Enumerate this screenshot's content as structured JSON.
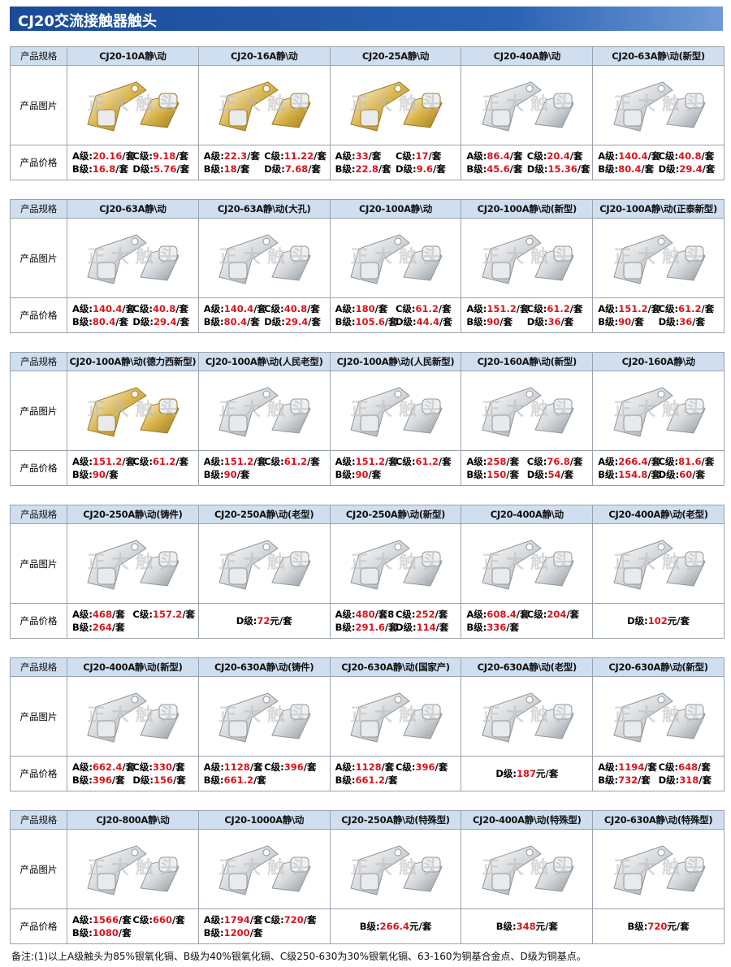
{
  "header": {
    "title": "CJ20交流接触器触头"
  },
  "row_labels": [
    "产品规格",
    "产品图片",
    "产品价格"
  ],
  "watermark": "正 大 触 头",
  "blocks": [
    {
      "columns": [
        {
          "name": "CJ20-10A静\\动",
          "prices": [
            [
              [
                "A级:",
                "20.16",
                "/套"
              ],
              [
                "C级:",
                "9.18",
                "/套"
              ]
            ],
            [
              [
                "B级:",
                "16.8",
                "/套"
              ],
              [
                "D级:",
                "5.76",
                "/套"
              ]
            ]
          ]
        },
        {
          "name": "CJ20-16A静\\动",
          "prices": [
            [
              [
                "A级:",
                "22.3",
                "/套"
              ],
              [
                "C级:",
                "11.22",
                "/套"
              ]
            ],
            [
              [
                "B级:",
                "18",
                "/套"
              ],
              [
                "D级:",
                "7.68",
                "/套"
              ]
            ]
          ]
        },
        {
          "name": "CJ20-25A静\\动",
          "prices": [
            [
              [
                "A级:",
                "33",
                "/套"
              ],
              [
                "C级:",
                "17",
                "/套"
              ]
            ],
            [
              [
                "B级:",
                "22.8",
                "/套"
              ],
              [
                "D级:",
                "9.6",
                "/套"
              ]
            ]
          ]
        },
        {
          "name": "CJ20-40A静\\动",
          "prices": [
            [
              [
                "A级:",
                "86.4",
                "/套"
              ],
              [
                "C级:",
                "20.4",
                "/套"
              ]
            ],
            [
              [
                "B级:",
                "45.6",
                "/套"
              ],
              [
                "D级:",
                "15.36",
                "/套"
              ]
            ]
          ]
        },
        {
          "name": "CJ20-63A静\\动(新型)",
          "prices": [
            [
              [
                "A级:",
                "140.4",
                "/套"
              ],
              [
                "C级:",
                "40.8",
                "/套"
              ]
            ],
            [
              [
                "B级:",
                "80.4",
                "/套"
              ],
              [
                "D级:",
                "29.4",
                "/套"
              ]
            ]
          ]
        }
      ]
    },
    {
      "columns": [
        {
          "name": "CJ20-63A静\\动",
          "prices": [
            [
              [
                "A级:",
                "140.4",
                "/套"
              ],
              [
                "C级:",
                "40.8",
                "/套"
              ]
            ],
            [
              [
                "B级:",
                "80.4",
                "/套"
              ],
              [
                "D级:",
                "29.4",
                "/套"
              ]
            ]
          ]
        },
        {
          "name": "CJ20-63A静\\动(大孔)",
          "prices": [
            [
              [
                "A级:",
                "140.4",
                "/套"
              ],
              [
                "C级:",
                "40.8",
                "/套"
              ]
            ],
            [
              [
                "B级:",
                "80.4",
                "/套"
              ],
              [
                "D级:",
                "29.4",
                "/套"
              ]
            ]
          ]
        },
        {
          "name": "CJ20-100A静\\动",
          "prices": [
            [
              [
                "A级:",
                "180",
                "/套"
              ],
              [
                "C级:",
                "61.2",
                "/套"
              ]
            ],
            [
              [
                "B级:",
                "105.6",
                "/套"
              ],
              [
                "D级:",
                "44.4",
                "/套"
              ]
            ]
          ]
        },
        {
          "name": "CJ20-100A静\\动(新型)",
          "prices": [
            [
              [
                "A级:",
                "151.2",
                "/套"
              ],
              [
                "C级:",
                "61.2",
                "/套"
              ]
            ],
            [
              [
                "B级:",
                "90",
                "/套"
              ],
              [
                "D级:",
                "36",
                "/套"
              ]
            ]
          ]
        },
        {
          "name": "CJ20-100A静\\动(正泰新型)",
          "prices": [
            [
              [
                "A级:",
                "151.2",
                "/套"
              ],
              [
                "C级:",
                "61.2",
                "/套"
              ]
            ],
            [
              [
                "B级:",
                "90",
                "/套"
              ],
              [
                "D级:",
                "36",
                "/套"
              ]
            ]
          ]
        }
      ]
    },
    {
      "columns": [
        {
          "name": "CJ20-100A静\\动(德力西新型)",
          "prices": [
            [
              [
                "A级:",
                "151.2",
                "/套"
              ],
              [
                "C级:",
                "61.2",
                "/套"
              ]
            ],
            [
              [
                "B级:",
                "90",
                "/套"
              ]
            ]
          ]
        },
        {
          "name": "CJ20-100A静\\动(人民老型)",
          "prices": [
            [
              [
                "A级:",
                "151.2",
                "/套"
              ],
              [
                "C级:",
                "61.2",
                "/套"
              ]
            ],
            [
              [
                "B级:",
                "90",
                "/套"
              ]
            ]
          ]
        },
        {
          "name": "CJ20-100A静\\动(人民新型)",
          "prices": [
            [
              [
                "A级:",
                "151.2",
                "/套"
              ],
              [
                "C级:",
                "61.2",
                "/套"
              ]
            ],
            [
              [
                "B级:",
                "90",
                "/套"
              ]
            ]
          ]
        },
        {
          "name": "CJ20-160A静\\动(新型)",
          "prices": [
            [
              [
                "A级:",
                "258",
                "/套"
              ],
              [
                "C级:",
                "76.8",
                "/套"
              ]
            ],
            [
              [
                "B级:",
                "150",
                "/套"
              ],
              [
                "D级:",
                "54",
                "/套"
              ]
            ]
          ]
        },
        {
          "name": "CJ20-160A静\\动",
          "prices": [
            [
              [
                "A级:",
                "266.4",
                "/套"
              ],
              [
                "C级:",
                "81.6",
                "/套"
              ]
            ],
            [
              [
                "B级:",
                "154.8",
                "/套"
              ],
              [
                "D级:",
                "60",
                "/套"
              ]
            ]
          ]
        }
      ]
    },
    {
      "columns": [
        {
          "name": "CJ20-250A静\\动(铸件)",
          "prices": [
            [
              [
                "A级:",
                "468",
                "/套"
              ],
              [
                "C级:",
                "157.2",
                "/套"
              ]
            ],
            [
              [
                "B级:",
                "264",
                "/套"
              ]
            ]
          ]
        },
        {
          "name": "CJ20-250A静\\动(老型)",
          "prices": [
            [
              [
                "D级:",
                "72",
                "元/套"
              ]
            ]
          ]
        },
        {
          "name": "CJ20-250A静\\动(新型)",
          "prices": [
            [
              [
                "A级:",
                "480",
                "/套8"
              ],
              [
                "C级:",
                "252",
                "/套"
              ]
            ],
            [
              [
                "B级:",
                "291.6",
                "/套"
              ],
              [
                "D级:",
                "114",
                "/套"
              ]
            ]
          ]
        },
        {
          "name": "CJ20-400A静\\动",
          "prices": [
            [
              [
                "A级:",
                "608.4",
                "/套"
              ],
              [
                "C级:",
                "204",
                "/套"
              ]
            ],
            [
              [
                "B级:",
                "336",
                "/套"
              ]
            ]
          ]
        },
        {
          "name": "CJ20-400A静\\动(老型)",
          "prices": [
            [
              [
                "D级:",
                "102",
                "元/套"
              ]
            ]
          ]
        }
      ]
    },
    {
      "columns": [
        {
          "name": "CJ20-400A静\\动(新型)",
          "prices": [
            [
              [
                "A级:",
                "662.4",
                "/套"
              ],
              [
                "C级:",
                "330",
                "/套"
              ]
            ],
            [
              [
                "B级:",
                "396",
                "/套"
              ],
              [
                "D级:",
                "156",
                "/套"
              ]
            ]
          ]
        },
        {
          "name": "CJ20-630A静\\动(铸件)",
          "prices": [
            [
              [
                "A级:",
                "1128",
                "/套"
              ],
              [
                "C级:",
                "396",
                "/套"
              ]
            ],
            [
              [
                "B级:",
                "661.2",
                "/套"
              ]
            ]
          ]
        },
        {
          "name": "CJ20-630A静\\动(国家产)",
          "prices": [
            [
              [
                "A级:",
                "1128",
                "/套"
              ],
              [
                "C级:",
                "396",
                "/套"
              ]
            ],
            [
              [
                "B级:",
                "661.2",
                "/套"
              ]
            ]
          ]
        },
        {
          "name": "CJ20-630A静\\动(老型)",
          "prices": [
            [
              [
                "D级:",
                "187",
                "元/套"
              ]
            ]
          ]
        },
        {
          "name": "CJ20-630A静\\动(新型)",
          "prices": [
            [
              [
                "A级:",
                "1194",
                "/套"
              ],
              [
                "C级:",
                "648",
                "/套"
              ]
            ],
            [
              [
                "B级:",
                "732",
                "/套"
              ],
              [
                "D级:",
                "318",
                "/套"
              ]
            ]
          ]
        }
      ]
    },
    {
      "columns": [
        {
          "name": "CJ20-800A静\\动",
          "prices": [
            [
              [
                "A级:",
                "1566",
                "/套"
              ],
              [
                "C级:",
                "660",
                "/套"
              ]
            ],
            [
              [
                "B级:",
                "1080",
                "/套"
              ]
            ]
          ]
        },
        {
          "name": "CJ20-1000A静\\动",
          "prices": [
            [
              [
                "A级:",
                "1794",
                "/套"
              ],
              [
                "C级:",
                "720",
                "/套"
              ]
            ],
            [
              [
                "B级:",
                "1200",
                "/套"
              ]
            ]
          ]
        },
        {
          "name": "CJ20-250A静\\动(特殊型)",
          "prices": [
            [
              [
                "B级:",
                "266.4",
                "元/套"
              ]
            ]
          ]
        },
        {
          "name": "CJ20-400A静\\动(特殊型)",
          "prices": [
            [
              [
                "B级:",
                "348",
                "元/套"
              ]
            ]
          ]
        },
        {
          "name": "CJ20-630A静\\动(特殊型)",
          "prices": [
            [
              [
                "B级:",
                "720",
                "元/套"
              ]
            ]
          ]
        }
      ]
    }
  ],
  "footnote": "备注:(1)以上A级触头为85%银氧化镉、B级为40%银氧化镉、C级250-630为30%银氧化镉、63-160为铜基合金点、D级为铜基点。"
}
